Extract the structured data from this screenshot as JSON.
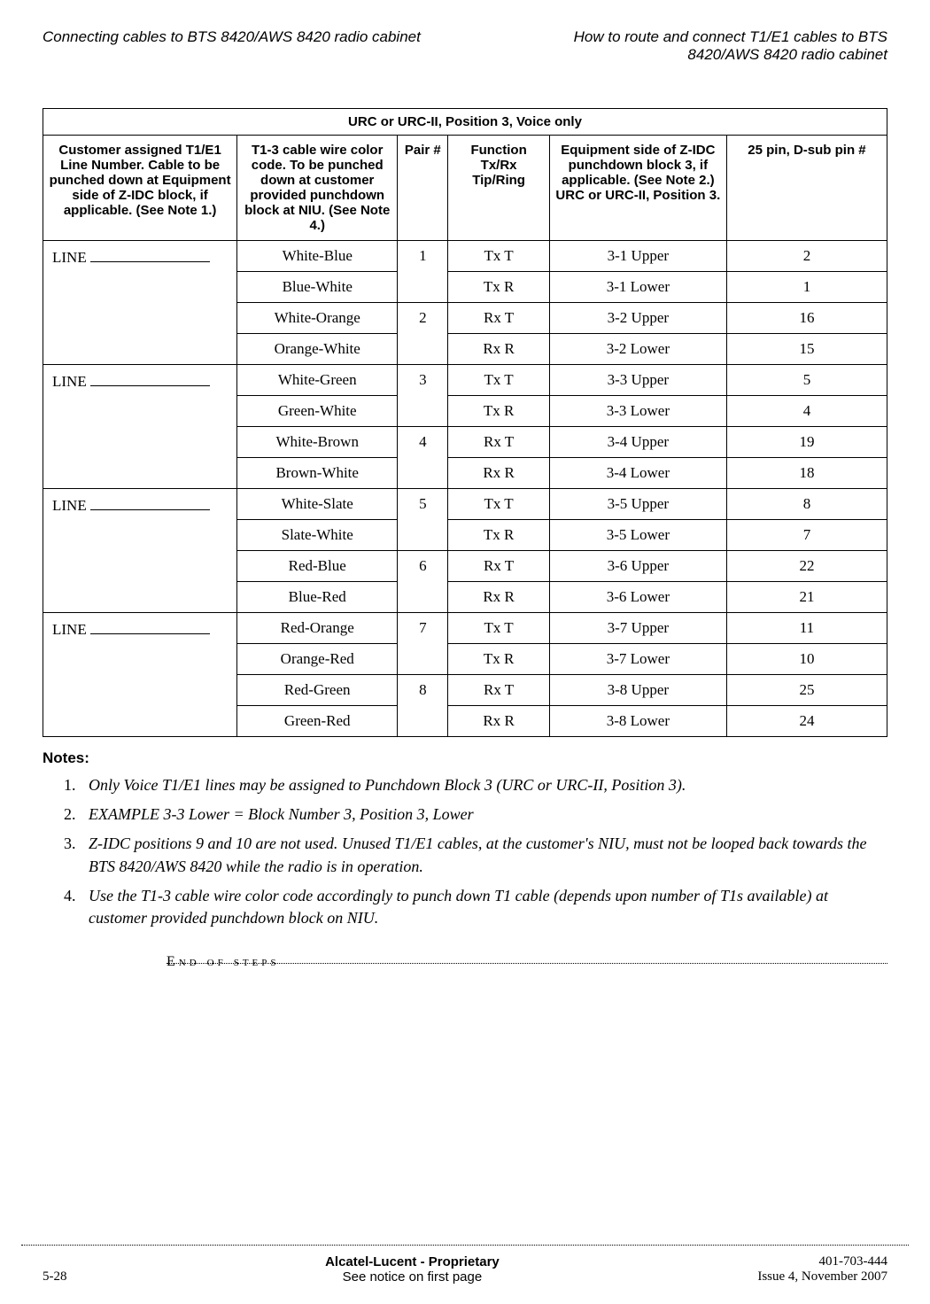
{
  "header": {
    "left": "Connecting cables to BTS 8420/AWS 8420 radio cabinet",
    "right_line1": "How to route and connect T1/E1 cables to BTS",
    "right_line2": "8420/AWS 8420 radio cabinet"
  },
  "table": {
    "title": "URC or URC-II, Position 3, Voice only",
    "columns": {
      "c0": "Customer assigned T1/E1 Line Number. Cable to be punched down at Equipment side of Z-IDC block, if applicable. (See Note 1.)",
      "c1": "T1-3 cable wire color code. To be punched down at customer provided punchdown block at NIU. (See Note 4.)",
      "c2": "Pair #",
      "c3": "Function Tx/Rx Tip/Ring",
      "c4": "Equipment side of Z-IDC punchdown block 3, if applicable. (See Note 2.) URC or URC-II, Position 3.",
      "c5": "25 pin, D-sub pin #"
    },
    "line_label": "LINE",
    "groups": [
      {
        "pairs": [
          {
            "pair": "1",
            "rows": [
              {
                "color": "White-Blue",
                "func": "Tx T",
                "equip": "3-1 Upper",
                "pin": "2"
              },
              {
                "color": "Blue-White",
                "func": "Tx R",
                "equip": "3-1 Lower",
                "pin": "1"
              }
            ]
          },
          {
            "pair": "2",
            "rows": [
              {
                "color": "White-Orange",
                "func": "Rx T",
                "equip": "3-2 Upper",
                "pin": "16"
              },
              {
                "color": "Orange-White",
                "func": "Rx R",
                "equip": "3-2 Lower",
                "pin": "15"
              }
            ]
          }
        ]
      },
      {
        "pairs": [
          {
            "pair": "3",
            "rows": [
              {
                "color": "White-Green",
                "func": "Tx T",
                "equip": "3-3 Upper",
                "pin": "5"
              },
              {
                "color": "Green-White",
                "func": "Tx R",
                "equip": "3-3 Lower",
                "pin": "4"
              }
            ]
          },
          {
            "pair": "4",
            "rows": [
              {
                "color": "White-Brown",
                "func": "Rx T",
                "equip": "3-4 Upper",
                "pin": "19"
              },
              {
                "color": "Brown-White",
                "func": "Rx R",
                "equip": "3-4 Lower",
                "pin": "18"
              }
            ]
          }
        ]
      },
      {
        "pairs": [
          {
            "pair": "5",
            "rows": [
              {
                "color": "White-Slate",
                "func": "Tx T",
                "equip": "3-5 Upper",
                "pin": "8"
              },
              {
                "color": "Slate-White",
                "func": "Tx R",
                "equip": "3-5 Lower",
                "pin": "7"
              }
            ]
          },
          {
            "pair": "6",
            "rows": [
              {
                "color": "Red-Blue",
                "func": "Rx T",
                "equip": "3-6 Upper",
                "pin": "22"
              },
              {
                "color": "Blue-Red",
                "func": "Rx R",
                "equip": "3-6 Lower",
                "pin": "21"
              }
            ]
          }
        ]
      },
      {
        "pairs": [
          {
            "pair": "7",
            "rows": [
              {
                "color": "Red-Orange",
                "func": "Tx T",
                "equip": "3-7 Upper",
                "pin": "11"
              },
              {
                "color": "Orange-Red",
                "func": "Tx R",
                "equip": "3-7 Lower",
                "pin": "10"
              }
            ]
          },
          {
            "pair": "8",
            "rows": [
              {
                "color": "Red-Green",
                "func": "Rx T",
                "equip": "3-8 Upper",
                "pin": "25"
              },
              {
                "color": "Green-Red",
                "func": "Rx R",
                "equip": "3-8 Lower",
                "pin": "24"
              }
            ]
          }
        ]
      }
    ]
  },
  "notes": {
    "heading": "Notes:",
    "items": [
      "Only Voice T1/E1 lines may be assigned to Punchdown Block 3 (URC or URC-II, Position 3).",
      "EXAMPLE 3-3 Lower = Block Number 3, Position 3, Lower",
      "Z-IDC positions 9 and 10 are not used. Unused T1/E1 cables, at the customer's NIU, must not be looped back towards the BTS 8420/AWS 8420 while the radio is in operation.",
      "Use the T1-3 cable wire color code accordingly to punch down T1 cable (depends upon number of T1s available) at customer provided punchdown block on NIU."
    ]
  },
  "end_of_steps": "End of steps",
  "footer": {
    "page": "5-28",
    "center_bold": "Alcatel-Lucent - Proprietary",
    "center_sub": "See notice on first page",
    "doc": "401-703-444",
    "issue": "Issue 4, November 2007"
  }
}
